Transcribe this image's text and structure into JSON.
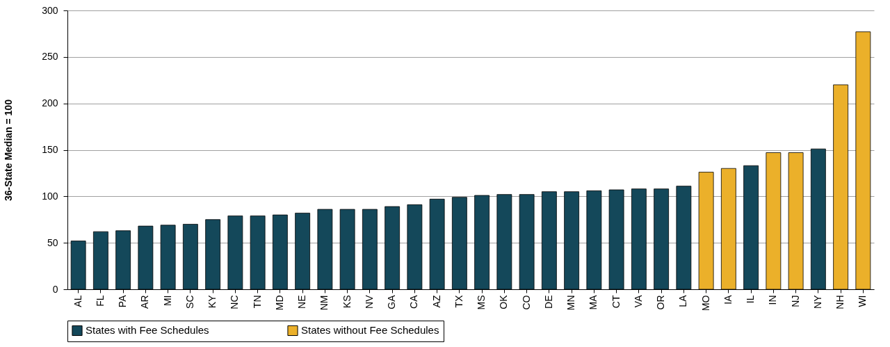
{
  "chart_data": {
    "type": "bar",
    "ylabel": "36-State Median = 100",
    "categories": [
      "AL",
      "FL",
      "PA",
      "AR",
      "MI",
      "SC",
      "KY",
      "NC",
      "TN",
      "MD",
      "NE",
      "NM",
      "KS",
      "NV",
      "GA",
      "CA",
      "AZ",
      "TX",
      "MS",
      "OK",
      "CO",
      "DE",
      "MN",
      "MA",
      "CT",
      "VA",
      "OR",
      "LA",
      "MO",
      "IA",
      "IL",
      "IN",
      "NJ",
      "NY",
      "NH",
      "WI"
    ],
    "series": [
      {
        "name": "States with Fee Schedules",
        "color": "#14485a",
        "values": [
          52,
          62,
          63,
          68,
          69,
          70,
          75,
          79,
          79,
          80,
          82,
          86,
          86,
          86,
          89,
          91,
          97,
          99,
          101,
          102,
          102,
          105,
          105,
          106,
          107,
          108,
          108,
          111,
          null,
          null,
          133,
          null,
          null,
          151,
          null,
          null
        ]
      },
      {
        "name": "States without Fee Schedules",
        "color": "#ebb02a",
        "values": [
          null,
          null,
          null,
          null,
          null,
          null,
          null,
          null,
          null,
          null,
          null,
          null,
          null,
          null,
          null,
          null,
          null,
          null,
          null,
          null,
          null,
          null,
          null,
          null,
          null,
          null,
          null,
          null,
          126,
          130,
          null,
          147,
          147,
          null,
          220,
          277
        ]
      }
    ],
    "ylim": [
      0,
      300
    ],
    "yticks": [
      0,
      50,
      100,
      150,
      200,
      250,
      300
    ],
    "grid": "y",
    "legend": "bottom"
  }
}
